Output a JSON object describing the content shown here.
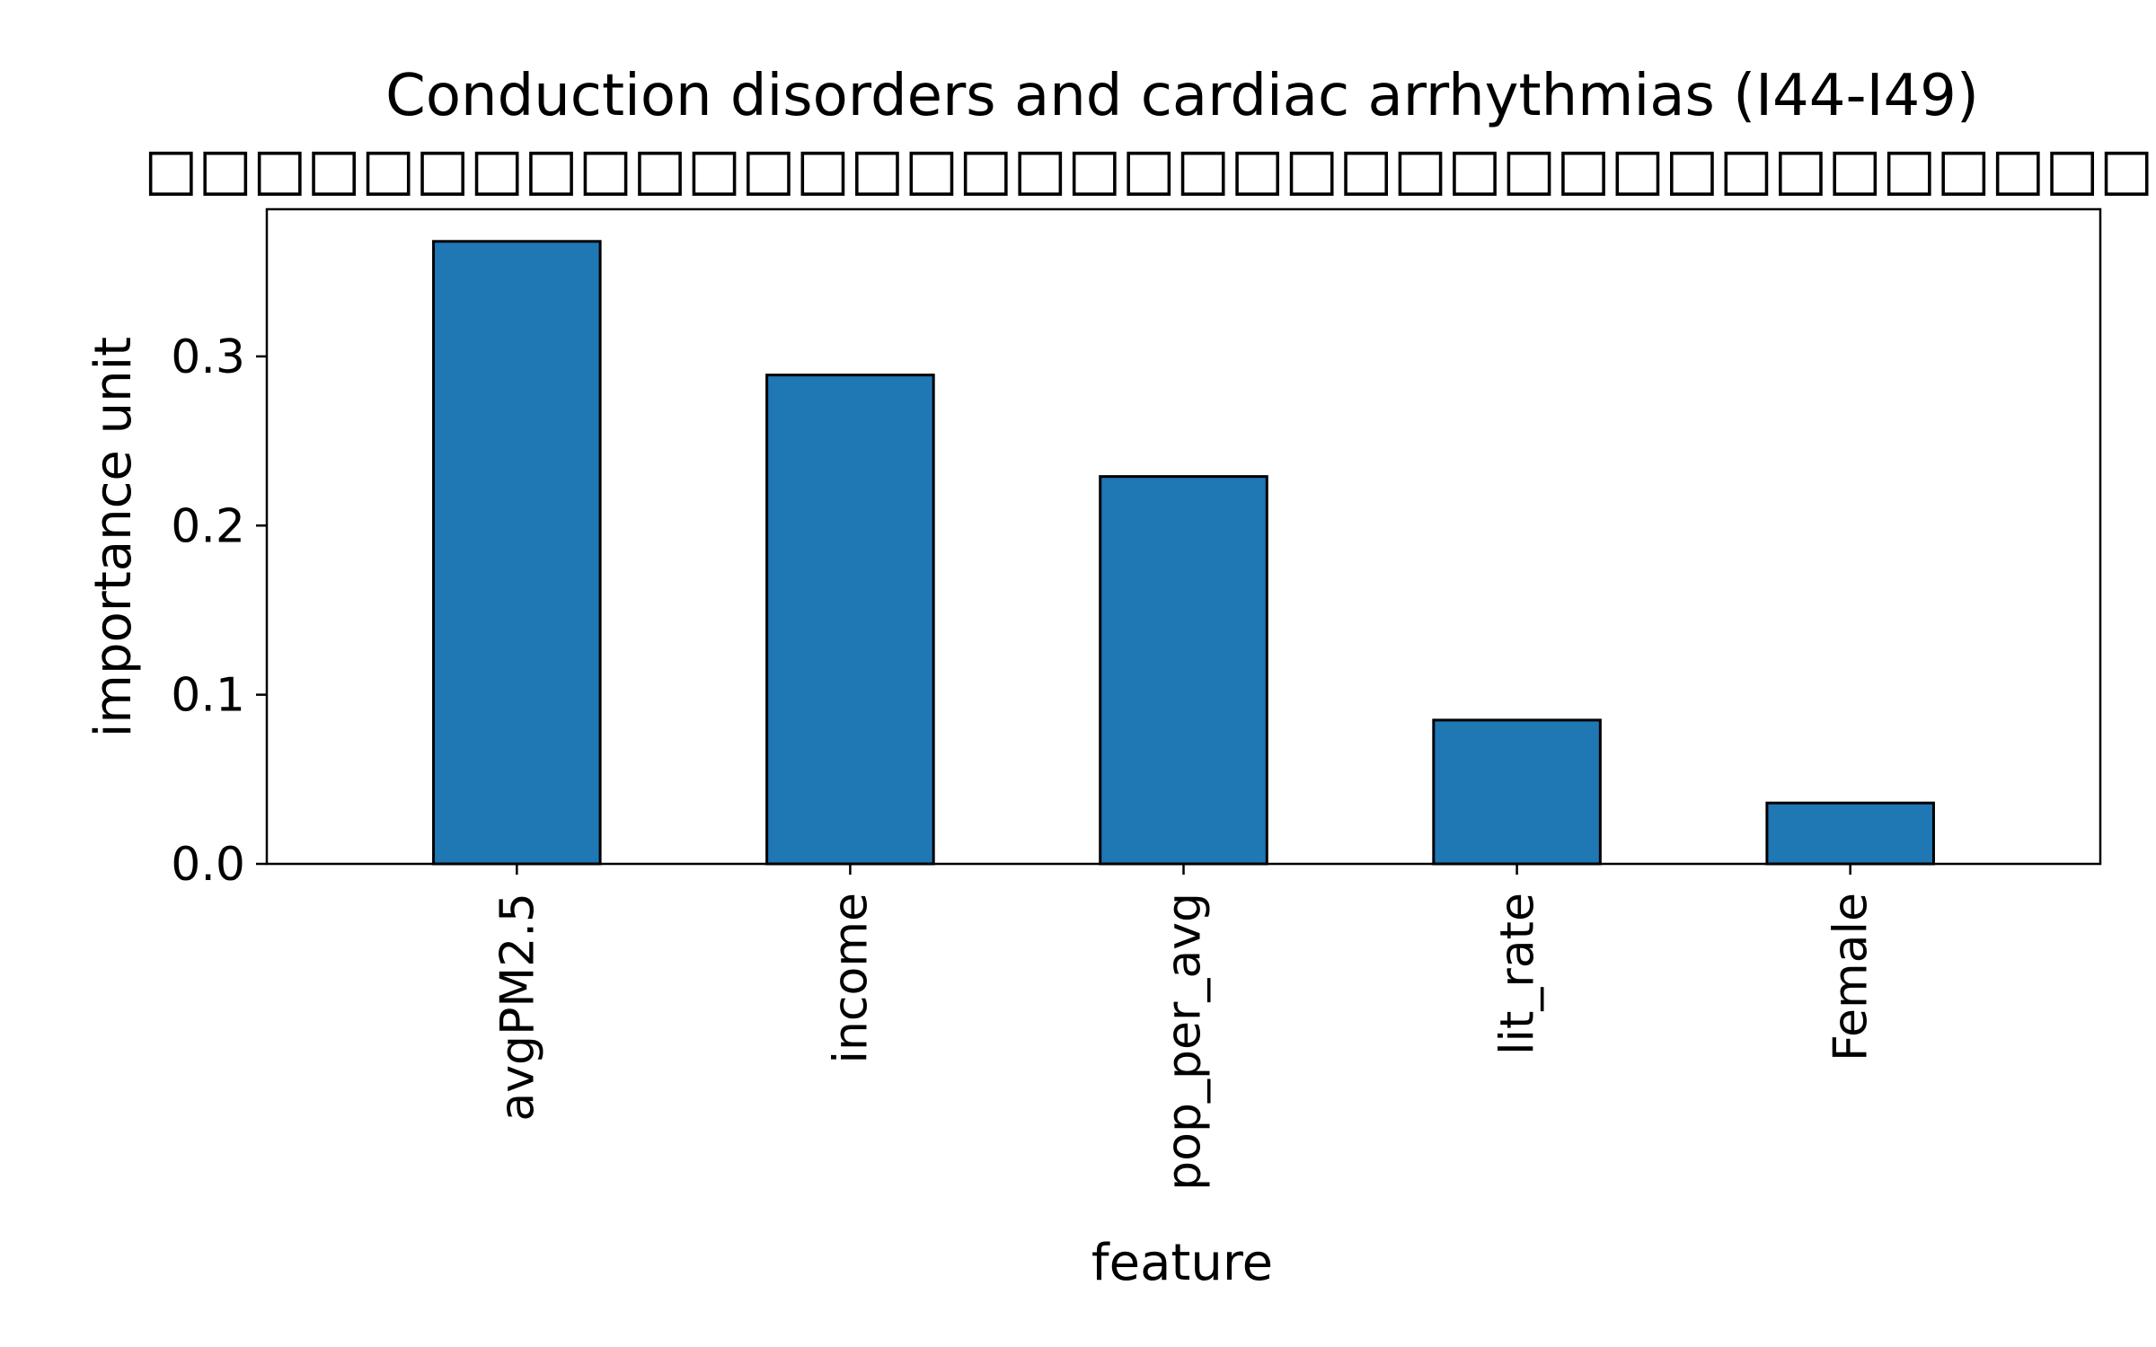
{
  "chart_data": {
    "type": "bar",
    "title": "Conduction disorders and cardiac arrhythmias (I44-I49)",
    "subtitle": "□□□□□□□□□□□□□□□□□□□□□□□□□□□□□□□□□□□□□□□□□□□□□□□□□□□□□□□□□□□□□□□□□□□",
    "xlabel": "feature",
    "ylabel": "importance unit",
    "categories": [
      "avgPM2.5",
      "income",
      "pop_per_avg",
      "lit_rate",
      "Female"
    ],
    "values": [
      0.368,
      0.289,
      0.229,
      0.085,
      0.036
    ],
    "ylim": [
      0,
      0.387
    ],
    "yticks": [
      0.0,
      0.1,
      0.2,
      0.3
    ],
    "ytick_labels": [
      "0.0",
      "0.1",
      "0.2",
      "0.3"
    ],
    "grid": false,
    "legend": "none",
    "colors": {
      "bar": "#1f77b4",
      "edge": "#000000"
    }
  }
}
